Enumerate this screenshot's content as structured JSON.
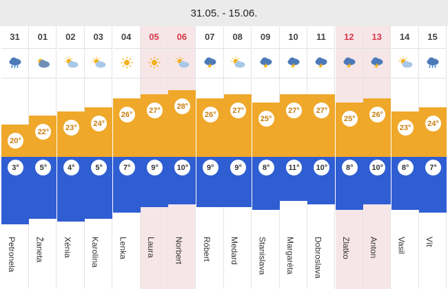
{
  "header": {
    "range": "31.05. - 15.06."
  },
  "days": [
    {
      "day": "31",
      "icon": "rain-cloud-icon",
      "max": "20°",
      "min": "3°",
      "name": "Petronela",
      "holiday": false
    },
    {
      "day": "01",
      "icon": "partly-cloudy-icon",
      "max": "22°",
      "min": "5°",
      "name": "Žaneta",
      "holiday": false
    },
    {
      "day": "02",
      "icon": "sun-cloud-icon",
      "max": "23°",
      "min": "4°",
      "name": "Xénia",
      "holiday": false
    },
    {
      "day": "03",
      "icon": "sun-cloud-icon",
      "max": "24°",
      "min": "5°",
      "name": "Karolína",
      "holiday": false
    },
    {
      "day": "04",
      "icon": "sun-icon",
      "max": "26°",
      "min": "7°",
      "name": "Lenka",
      "holiday": false
    },
    {
      "day": "05",
      "icon": "sun-icon",
      "max": "27°",
      "min": "9°",
      "name": "Laura",
      "holiday": true
    },
    {
      "day": "06",
      "icon": "sun-cloud-icon",
      "max": "28°",
      "min": "10°",
      "name": "Norbert",
      "holiday": true
    },
    {
      "day": "07",
      "icon": "thunderstorm-icon",
      "max": "26°",
      "min": "9°",
      "name": "Róbert",
      "holiday": false
    },
    {
      "day": "08",
      "icon": "sun-cloud-icon",
      "max": "27°",
      "min": "9°",
      "name": "Medard",
      "holiday": false
    },
    {
      "day": "09",
      "icon": "thunderstorm-icon",
      "max": "25°",
      "min": "8°",
      "name": "Stanislava",
      "holiday": false
    },
    {
      "day": "10",
      "icon": "thunderstorm-icon",
      "max": "27°",
      "min": "11°",
      "name": "Margaréta",
      "holiday": false
    },
    {
      "day": "11",
      "icon": "thunderstorm-icon",
      "max": "27°",
      "min": "10°",
      "name": "Dobroslava",
      "holiday": false
    },
    {
      "day": "12",
      "icon": "thunderstorm-icon",
      "max": "25°",
      "min": "8°",
      "name": "Zlatko",
      "holiday": true
    },
    {
      "day": "13",
      "icon": "thunderstorm-icon",
      "max": "26°",
      "min": "10°",
      "name": "Anton",
      "holiday": true
    },
    {
      "day": "14",
      "icon": "sun-cloud-icon",
      "max": "23°",
      "min": "8°",
      "name": "Vasil",
      "holiday": false
    },
    {
      "day": "15",
      "icon": "rain-cloud-icon",
      "max": "24°",
      "min": "7°",
      "name": "Vít",
      "holiday": false
    }
  ],
  "colors": {
    "max_bar": "#efa82a",
    "min_bar": "#2f5ed2",
    "holiday_bg": "#f7e6e8",
    "holiday_text": "#d5384a"
  }
}
